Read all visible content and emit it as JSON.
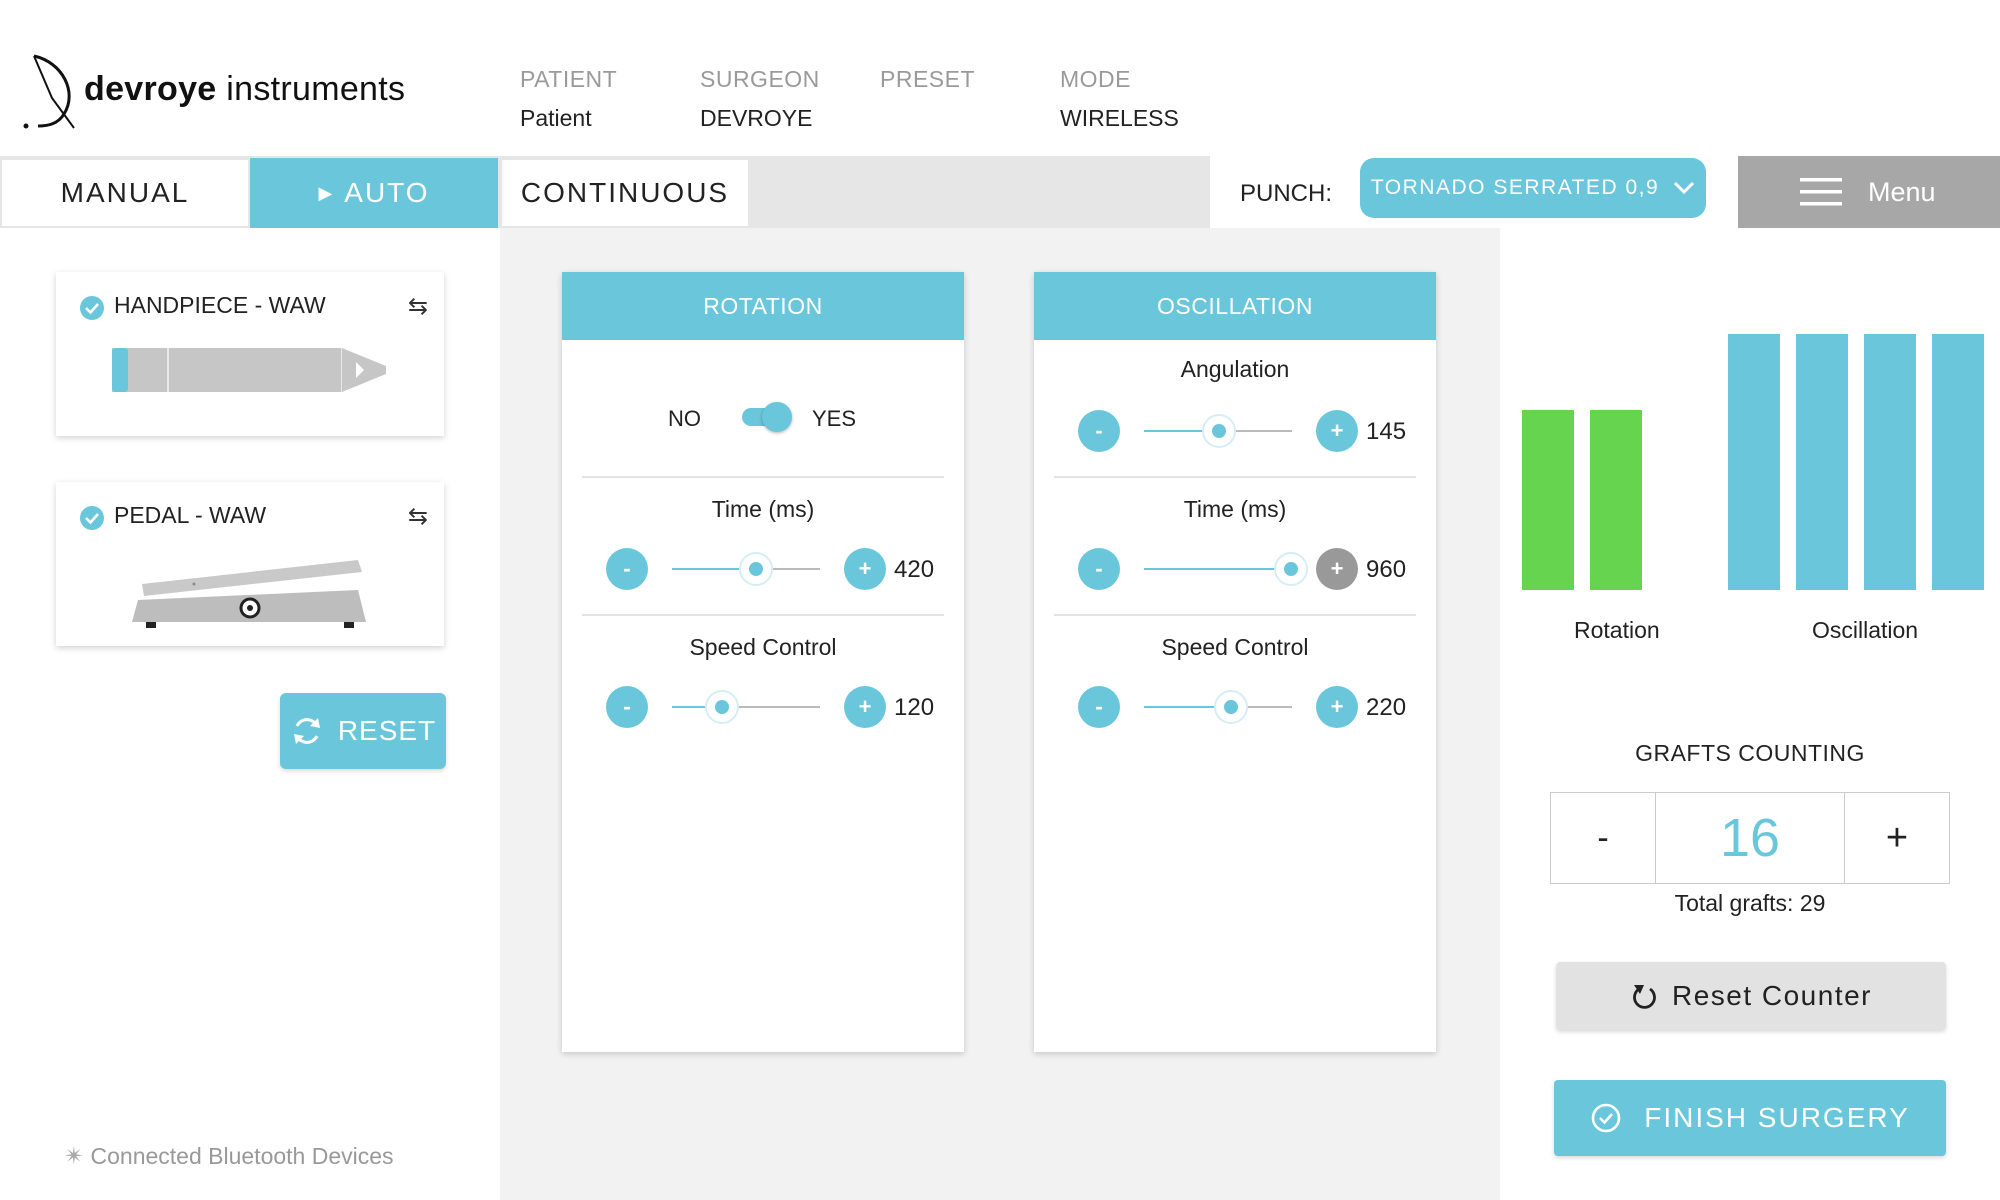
{
  "brand": {
    "bold": "devroye",
    "light": " instruments"
  },
  "header": {
    "cols": [
      {
        "label": "PATIENT",
        "value": "Patient"
      },
      {
        "label": "SURGEON",
        "value": "DEVROYE"
      },
      {
        "label": "PRESET",
        "value": ""
      },
      {
        "label": "MODE",
        "value": "WIRELESS"
      }
    ]
  },
  "tabs": [
    {
      "label": "MANUAL",
      "active": false
    },
    {
      "label": "AUTO",
      "active": true
    },
    {
      "label": "CONTINUOUS",
      "active": false
    }
  ],
  "punch": {
    "label": "PUNCH:",
    "selected": "TORNADO SERRATED 0,9"
  },
  "menu": {
    "label": "Menu"
  },
  "devices": [
    {
      "title": "HANDPIECE - WAW",
      "checked": true
    },
    {
      "title": "PEDAL - WAW",
      "checked": true
    }
  ],
  "reset": {
    "label": "RESET"
  },
  "bluetooth": {
    "label": "Connected Bluetooth Devices"
  },
  "rotation": {
    "title": "ROTATION",
    "toggle": {
      "off_label": "NO",
      "on_label": "YES",
      "on": true
    },
    "time": {
      "label": "Time (ms)",
      "value": "420",
      "level": 0.57
    },
    "speed": {
      "label": "Speed Control",
      "value": "120",
      "level": 0.34
    }
  },
  "oscillation": {
    "title": "OSCILLATION",
    "angulation": {
      "label": "Angulation",
      "value": "145",
      "level": 0.51
    },
    "time": {
      "label": "Time (ms)",
      "value": "960",
      "level": 0.99
    },
    "speed": {
      "label": "Speed Control",
      "value": "220",
      "level": 0.59
    }
  },
  "visual": {
    "rotation": {
      "label": "Rotation",
      "bars": 2,
      "color": "#66d44f"
    },
    "oscillation": {
      "label": "Oscillation",
      "bars": 4,
      "color": "#6ac7db"
    }
  },
  "grafts": {
    "title": "GRAFTS COUNTING",
    "minus": "-",
    "plus": "+",
    "count": "16",
    "total_label": "Total grafts: 29"
  },
  "reset_counter": {
    "label": "Reset Counter"
  },
  "finish": {
    "label": "FINISH SURGERY"
  },
  "colors": {
    "accent": "#6ac7db",
    "green": "#66d44f",
    "gray": "#a7a7a7"
  }
}
